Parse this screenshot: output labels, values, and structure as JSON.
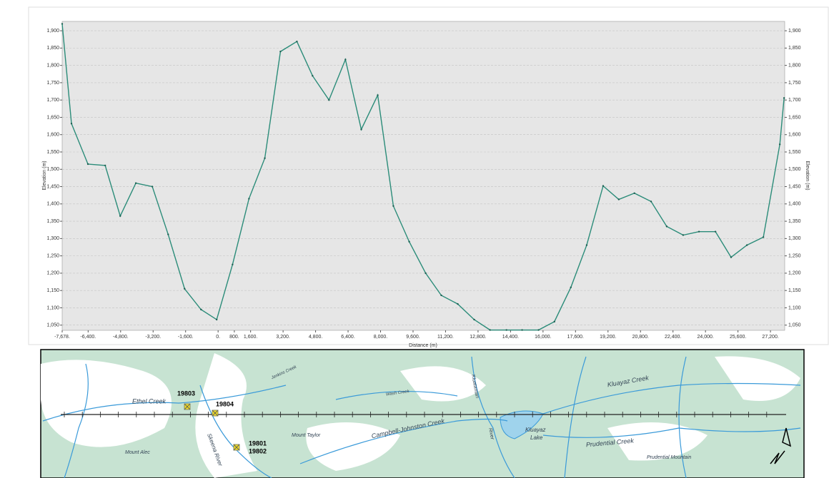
{
  "chart_data": {
    "type": "line",
    "xlabel": "Distance (m)",
    "ylabel": "Elevation (m)",
    "y2label": "Elevation (m)",
    "x": [
      -7678,
      -7220,
      -6410,
      -5560,
      -4820,
      -4050,
      -3240,
      -2460,
      -1650,
      -840,
      -70,
      710,
      1520,
      2300,
      3070,
      3880,
      4650,
      5460,
      6270,
      7050,
      7860,
      8630,
      9410,
      10220,
      10990,
      11800,
      12610,
      13390,
      14200,
      14970,
      15780,
      16560,
      17370,
      18150,
      18960,
      19730,
      20500,
      21320,
      22090,
      22900,
      23680,
      24490,
      25260,
      26040,
      26850,
      27660,
      27870
    ],
    "series": [
      {
        "name": "Elevation",
        "color": "#2b8c79",
        "values": [
          1920,
          1632,
          1515,
          1511,
          1365,
          1460,
          1450,
          1312,
          1155,
          1095,
          1066,
          1225,
          1415,
          1532,
          1840,
          1869,
          1770,
          1700,
          1817,
          1615,
          1714,
          1394,
          1291,
          1200,
          1136,
          1111,
          1066,
          1036,
          1036,
          1036,
          1036,
          1060,
          1159,
          1281,
          1452,
          1413,
          1431,
          1407,
          1335,
          1310,
          1320,
          1320,
          1246,
          1281,
          1304,
          1572,
          1706
        ]
      }
    ],
    "xlim": [
      -7678,
      27900
    ],
    "xticks": [
      {
        "value": -7678,
        "label": "-7,678."
      },
      {
        "value": -6400,
        "label": "-6,400."
      },
      {
        "value": -4800,
        "label": "-4,800."
      },
      {
        "value": -3200,
        "label": "-3,200."
      },
      {
        "value": -1600,
        "label": "-1,600."
      },
      {
        "value": 0,
        "label": "0."
      },
      {
        "value": 800,
        "label": "800."
      },
      {
        "value": 1600,
        "label": "1,600."
      },
      {
        "value": 3200,
        "label": "3,200."
      },
      {
        "value": 4800,
        "label": "4,800."
      },
      {
        "value": 6400,
        "label": "6,400."
      },
      {
        "value": 8000,
        "label": "8,000."
      },
      {
        "value": 9600,
        "label": "9,600."
      },
      {
        "value": 11200,
        "label": "11,200."
      },
      {
        "value": 12800,
        "label": "12,800."
      },
      {
        "value": 14400,
        "label": "14,400."
      },
      {
        "value": 16000,
        "label": "16,000."
      },
      {
        "value": 17600,
        "label": "17,600."
      },
      {
        "value": 19200,
        "label": "19,200."
      },
      {
        "value": 20800,
        "label": "20,800."
      },
      {
        "value": 22400,
        "label": "22,400."
      },
      {
        "value": 24000,
        "label": "24,000."
      },
      {
        "value": 25600,
        "label": "25,600."
      },
      {
        "value": 27200,
        "label": "27,200."
      }
    ],
    "ylim": [
      1035,
      1927
    ],
    "yticks": [
      {
        "value": 1050,
        "label": "1,050"
      },
      {
        "value": 1100,
        "label": "1,100"
      },
      {
        "value": 1150,
        "label": "1,150"
      },
      {
        "value": 1200,
        "label": "1,200"
      },
      {
        "value": 1250,
        "label": "1,250"
      },
      {
        "value": 1300,
        "label": "1,300"
      },
      {
        "value": 1350,
        "label": "1,350"
      },
      {
        "value": 1400,
        "label": "1,400"
      },
      {
        "value": 1450,
        "label": "1,450"
      },
      {
        "value": 1500,
        "label": "1,500"
      },
      {
        "value": 1550,
        "label": "1,550"
      },
      {
        "value": 1600,
        "label": "1,600"
      },
      {
        "value": 1650,
        "label": "1,650"
      },
      {
        "value": 1700,
        "label": "1,700"
      },
      {
        "value": 1750,
        "label": "1,750"
      },
      {
        "value": 1800,
        "label": "1,800"
      },
      {
        "value": 1850,
        "label": "1,850"
      },
      {
        "value": 1900,
        "label": "1,900"
      }
    ],
    "y2lim": [
      1035,
      1927
    ],
    "y2ticks": [
      {
        "value": 1050,
        "label": "1,050"
      },
      {
        "value": 1100,
        "label": "1,100"
      },
      {
        "value": 1150,
        "label": "1,150"
      },
      {
        "value": 1200,
        "label": "1,200"
      },
      {
        "value": 1250,
        "label": "1,250"
      },
      {
        "value": 1300,
        "label": "1,300"
      },
      {
        "value": 1350,
        "label": "1,350"
      },
      {
        "value": 1400,
        "label": "1,400"
      },
      {
        "value": 1450,
        "label": "1,450"
      },
      {
        "value": 1500,
        "label": "1,500"
      },
      {
        "value": 1550,
        "label": "1,550"
      },
      {
        "value": 1600,
        "label": "1,600"
      },
      {
        "value": 1650,
        "label": "1,650"
      },
      {
        "value": 1700,
        "label": "1,700"
      },
      {
        "value": 1750,
        "label": "1,750"
      },
      {
        "value": 1800,
        "label": "1,800"
      },
      {
        "value": 1850,
        "label": "1,850"
      },
      {
        "value": 1900,
        "label": "1,900"
      }
    ],
    "grid": true
  },
  "map": {
    "sites": [
      "19803",
      "19804",
      "19801",
      "19802"
    ],
    "labels": [
      "Ethel Creek",
      "Jenkins Creek",
      "Wash Creek",
      "Kluatantan",
      "River",
      "Kluayaz Creek",
      "Kluayaz",
      "Lake",
      "Campbell-Johnston Creek",
      "Mount Taylor",
      "Mount Alec",
      "Skeena River",
      "Prudential Creek",
      "Prudential Mountain"
    ]
  }
}
